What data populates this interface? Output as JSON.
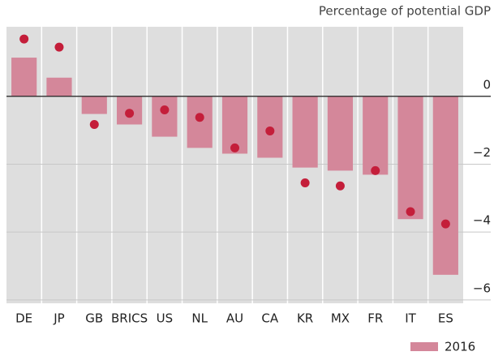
{
  "chart_data": {
    "type": "bar",
    "y_axis_label": "Percentage of potential GDP",
    "categories": [
      "DE",
      "JP",
      "GB",
      "BRICS",
      "US",
      "NL",
      "AU",
      "CA",
      "KR",
      "MX",
      "FR",
      "IT",
      "ES"
    ],
    "series": [
      {
        "name": "2016",
        "color": "#d4879a",
        "kind": "bar",
        "values": [
          1.14,
          0.55,
          -0.52,
          -0.83,
          -1.19,
          -1.52,
          -1.69,
          -1.81,
          -2.1,
          -2.19,
          -2.31,
          -3.62,
          -5.26
        ]
      },
      {
        "color": "#c41e3a",
        "kind": "dot",
        "values": [
          1.69,
          1.45,
          -0.83,
          -0.5,
          -0.4,
          -0.62,
          -1.52,
          -1.02,
          -2.55,
          -2.64,
          -2.19,
          -3.4,
          -3.76
        ]
      }
    ],
    "ylim": [
      -6.1,
      2.05
    ],
    "yticks": [
      0,
      {
        "value": -2,
        "label": "−2"
      },
      {
        "value": -4,
        "label": "−4"
      },
      {
        "value": -6,
        "label": "−6"
      }
    ],
    "grid": true,
    "legend": "bottom-right"
  }
}
